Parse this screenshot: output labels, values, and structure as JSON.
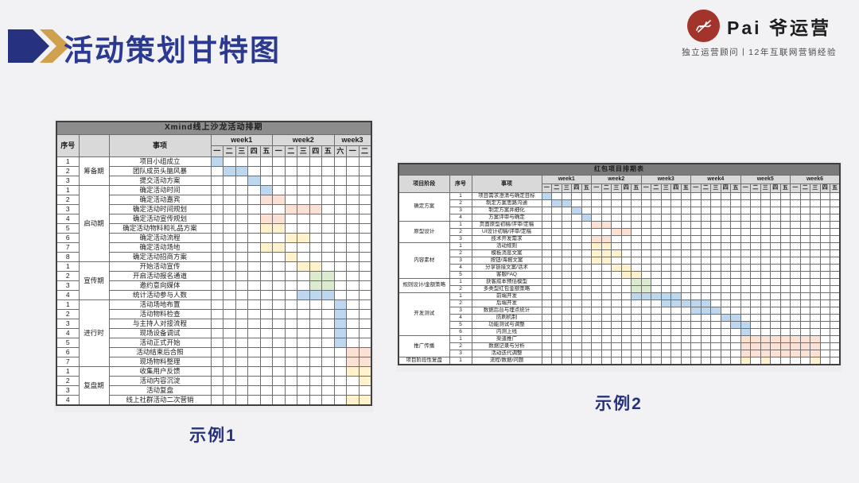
{
  "page_title": "活动策划甘特图",
  "logo": {
    "name": "Pai 爷运营",
    "tagline": "独立运营顾问丨12年互联网营销经验"
  },
  "captions": {
    "example1": "示例1",
    "example2": "示例2"
  },
  "colors": {
    "accent_navy": "#26327e",
    "accent_gold": "#cfa14f",
    "logo_red": "#a3342c",
    "bar_blue": "#bdd7ee",
    "bar_peach": "#fae1d3",
    "bar_yellow": "#fff2cc",
    "bar_green": "#dcead0"
  },
  "chart_data": [
    {
      "type": "table",
      "subtype": "gantt",
      "title": "Xmind线上沙龙活动排期",
      "columns": {
        "no": "序号",
        "phase": "",
        "task": "事项"
      },
      "weeks": [
        {
          "label": "week1",
          "days": [
            "一",
            "二",
            "三",
            "四",
            "五"
          ]
        },
        {
          "label": "week2",
          "days": [
            "一",
            "二",
            "三",
            "四",
            "五"
          ]
        },
        {
          "label": "week3",
          "days": [
            "六",
            "一",
            "二"
          ]
        }
      ],
      "phases": [
        {
          "name": "筹备期",
          "tasks": [
            {
              "no": "1",
              "task": "项目小组成立",
              "color": "blue",
              "cells": [
                1
              ]
            },
            {
              "no": "2",
              "task": "团队成员头脑风暴",
              "color": "blue",
              "cells": [
                2,
                3
              ]
            },
            {
              "no": "3",
              "task": "提交活动方案",
              "color": "blue",
              "cells": [
                4
              ]
            }
          ]
        },
        {
          "name": "启动期",
          "tasks": [
            {
              "no": "1",
              "task": "确定活动时间",
              "color": "blue",
              "cells": [
                5
              ]
            },
            {
              "no": "2",
              "task": "确定活动嘉宾",
              "color": "peach",
              "cells": [
                5,
                6
              ]
            },
            {
              "no": "3",
              "task": "确定活动时间规划",
              "color": "peach",
              "cells": [
                7,
                8,
                9
              ]
            },
            {
              "no": "4",
              "task": "确定活动宣传规划",
              "color": "peach",
              "cells": [
                5,
                6
              ]
            },
            {
              "no": "5",
              "task": "确定活动物料和礼品方案",
              "color": "yellow",
              "cells": [
                5,
                6
              ]
            },
            {
              "no": "6",
              "task": "确定活动流程",
              "color": "yellow",
              "cells": [
                7,
                8
              ]
            },
            {
              "no": "7",
              "task": "确定活动场地",
              "color": "yellow",
              "cells": [
                5,
                6
              ]
            },
            {
              "no": "8",
              "task": "确定活动招商方案",
              "color": "yellow",
              "cells": [
                7
              ]
            }
          ]
        },
        {
          "name": "宣传期",
          "tasks": [
            {
              "no": "1",
              "task": "开始活动宣传",
              "color": "yellow",
              "cells": [
                8,
                9
              ]
            },
            {
              "no": "2",
              "task": "开启活动报名通道",
              "color": "green",
              "cells": [
                9,
                10
              ]
            },
            {
              "no": "3",
              "task": "邀约意向媒体",
              "color": "green",
              "cells": [
                9,
                10
              ]
            },
            {
              "no": "4",
              "task": "统计活动参与人数",
              "color": "blue",
              "cells": [
                8,
                9,
                10
              ]
            }
          ]
        },
        {
          "name": "进行时",
          "tasks": [
            {
              "no": "1",
              "task": "活动场地布置",
              "color": "blue",
              "cells": [
                11
              ]
            },
            {
              "no": "2",
              "task": "活动物料检查",
              "color": "blue",
              "cells": [
                11
              ]
            },
            {
              "no": "3",
              "task": "与主持人对接流程",
              "color": "blue",
              "cells": [
                11
              ]
            },
            {
              "no": "4",
              "task": "现场设备调试",
              "color": "blue",
              "cells": [
                11
              ]
            },
            {
              "no": "5",
              "task": "活动正式开始",
              "color": "blue",
              "cells": [
                11
              ]
            },
            {
              "no": "6",
              "task": "活动结束后合照",
              "color": "peach",
              "cells": [
                12,
                13
              ]
            },
            {
              "no": "7",
              "task": "现场物料整理",
              "color": "peach",
              "cells": [
                12,
                13
              ]
            }
          ]
        },
        {
          "name": "复盘期",
          "tasks": [
            {
              "no": "1",
              "task": "收集用户反馈",
              "color": "yellow",
              "cells": [
                12,
                13
              ]
            },
            {
              "no": "2",
              "task": "活动内容沉淀",
              "color": "yellow",
              "cells": [
                13
              ]
            },
            {
              "no": "3",
              "task": "活动复盘",
              "color": "yellow",
              "cells": []
            },
            {
              "no": "4",
              "task": "线上社群活动二次营销",
              "color": "yellow",
              "cells": [
                12,
                13
              ]
            }
          ]
        }
      ]
    },
    {
      "type": "table",
      "subtype": "gantt",
      "title": "红包项目排期表",
      "columns": {
        "phase": "项目阶段",
        "no": "序号",
        "task": "事项"
      },
      "weeks": [
        {
          "label": "week1",
          "days": [
            "一",
            "二",
            "三",
            "四",
            "五"
          ]
        },
        {
          "label": "week2",
          "days": [
            "一",
            "二",
            "三",
            "四",
            "五"
          ]
        },
        {
          "label": "week3",
          "days": [
            "一",
            "二",
            "三",
            "四",
            "五"
          ]
        },
        {
          "label": "week4",
          "days": [
            "一",
            "二",
            "三",
            "四",
            "五"
          ]
        },
        {
          "label": "week5",
          "days": [
            "一",
            "二",
            "三",
            "四",
            "五"
          ]
        },
        {
          "label": "week6",
          "days": [
            "一",
            "二",
            "三",
            "四",
            "五"
          ]
        }
      ],
      "phases": [
        {
          "name": "确定方案",
          "tasks": [
            {
              "no": "1",
              "task": "项目需求澄清与确定目标",
              "color": "blue",
              "cells": [
                1
              ]
            },
            {
              "no": "2",
              "task": "制定方案思路沟通",
              "color": "blue",
              "cells": [
                2,
                3
              ]
            },
            {
              "no": "3",
              "task": "制定方案并细化",
              "color": "blue",
              "cells": [
                4
              ]
            },
            {
              "no": "4",
              "task": "方案评审与确定",
              "color": "blue",
              "cells": [
                5
              ]
            }
          ]
        },
        {
          "name": "原型设计",
          "tasks": [
            {
              "no": "1",
              "task": "页面原型初稿/评审/定稿",
              "color": "peach",
              "cells": [
                6,
                7
              ]
            },
            {
              "no": "2",
              "task": "UI设计初稿/评审/定稿",
              "color": "peach",
              "cells": [
                8,
                9
              ]
            },
            {
              "no": "3",
              "task": "技术开发需求",
              "color": "peach",
              "cells": [
                6,
                7
              ]
            }
          ]
        },
        {
          "name": "内容素材",
          "tasks": [
            {
              "no": "1",
              "task": "活动规则",
              "color": "yellow",
              "cells": [
                6,
                7
              ]
            },
            {
              "no": "2",
              "task": "模板消息文案",
              "color": "yellow",
              "cells": [
                6,
                7,
                8
              ]
            },
            {
              "no": "3",
              "task": "按钮/海报文案",
              "color": "yellow",
              "cells": [
                6,
                7
              ]
            },
            {
              "no": "4",
              "task": "分享链接文案/话术",
              "color": "yellow",
              "cells": [
                8,
                9
              ]
            },
            {
              "no": "5",
              "task": "客服FAQ",
              "color": "yellow",
              "cells": [
                9,
                10
              ]
            }
          ]
        },
        {
          "name": "规则设计/金额策略",
          "tasks": [
            {
              "no": "1",
              "task": "获客成本预估模型",
              "color": "green",
              "cells": [
                10,
                11
              ]
            },
            {
              "no": "2",
              "task": "多类型红包金额策略",
              "color": "green",
              "cells": [
                10,
                11
              ]
            }
          ]
        },
        {
          "name": "开发测试",
          "tasks": [
            {
              "no": "1",
              "task": "前端开发",
              "color": "blue",
              "cells": [
                10,
                11,
                12,
                13,
                14
              ]
            },
            {
              "no": "2",
              "task": "后端开发",
              "color": "blue",
              "cells": [
                13,
                14,
                15,
                16,
                17
              ]
            },
            {
              "no": "3",
              "task": "数据后台与埋点统计",
              "color": "blue",
              "cells": [
                16,
                17,
                18
              ]
            },
            {
              "no": "4",
              "task": "防刷机制",
              "color": "blue",
              "cells": [
                19,
                20
              ]
            },
            {
              "no": "5",
              "task": "功能测试与调整",
              "color": "blue",
              "cells": [
                20,
                21
              ]
            },
            {
              "no": "6",
              "task": "内测上线",
              "color": "blue",
              "cells": [
                21
              ]
            }
          ]
        },
        {
          "name": "推广传播",
          "tasks": [
            {
              "no": "1",
              "task": "渠道推广",
              "color": "peach",
              "cells": [
                21,
                22,
                23,
                24,
                25,
                26,
                27,
                28
              ]
            },
            {
              "no": "2",
              "task": "数据记录与分析",
              "color": "peach",
              "cells": [
                21,
                22,
                23,
                24,
                25,
                26,
                27,
                28
              ]
            },
            {
              "no": "3",
              "task": "活动迭代调整",
              "color": "peach",
              "cells": [
                21,
                22,
                23,
                24,
                25,
                26,
                27,
                28
              ]
            }
          ]
        },
        {
          "name": "项目阶段性复盘",
          "tasks": [
            {
              "no": "1",
              "task": "流程/数据/问题",
              "color": "yellow",
              "cells": [
                21,
                23,
                28
              ]
            }
          ]
        }
      ]
    }
  ]
}
